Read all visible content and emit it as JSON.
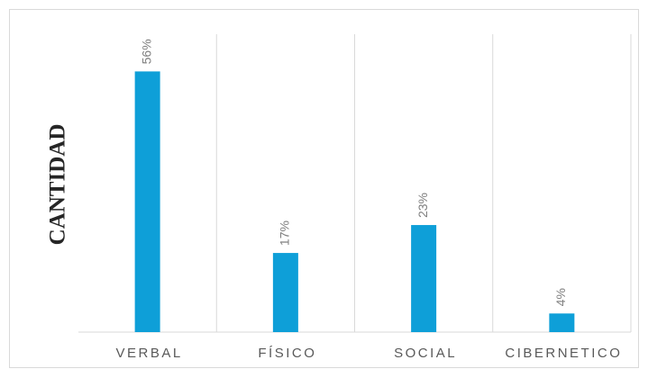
{
  "chart_data": {
    "type": "bar",
    "y_label": "CANTIDAD",
    "categories": [
      "VERBAL",
      "FÍSICO",
      "SOCIAL",
      "CIBERNETICO"
    ],
    "values": [
      56,
      17,
      23,
      4
    ],
    "value_labels": [
      "56%",
      "17%",
      "23%",
      "4%"
    ],
    "color": "#0e9fd8",
    "ylim": [
      0,
      64
    ]
  }
}
